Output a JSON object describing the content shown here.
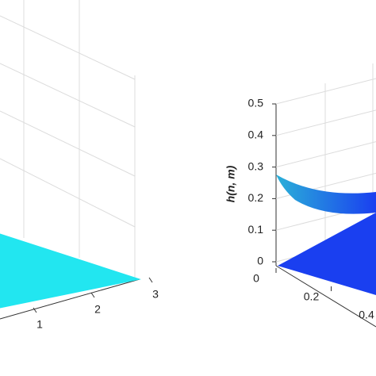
{
  "chart_data": [
    {
      "type": "surface3d",
      "xlim": [
        1,
        3
      ],
      "xticks": [
        1,
        2,
        3
      ],
      "surface_color": "#22e6f0"
    },
    {
      "type": "surface3d",
      "zlabel": "h(n, m)",
      "zlim": [
        0,
        0.5
      ],
      "zticks": [
        0,
        0.1,
        0.2,
        0.3,
        0.4,
        0.5
      ],
      "xlim": [
        0,
        0.4
      ],
      "xticks": [
        0,
        0.2,
        0.4
      ],
      "surface_color": "#2ab0d8",
      "floor_color": "#1a3ff0"
    }
  ]
}
